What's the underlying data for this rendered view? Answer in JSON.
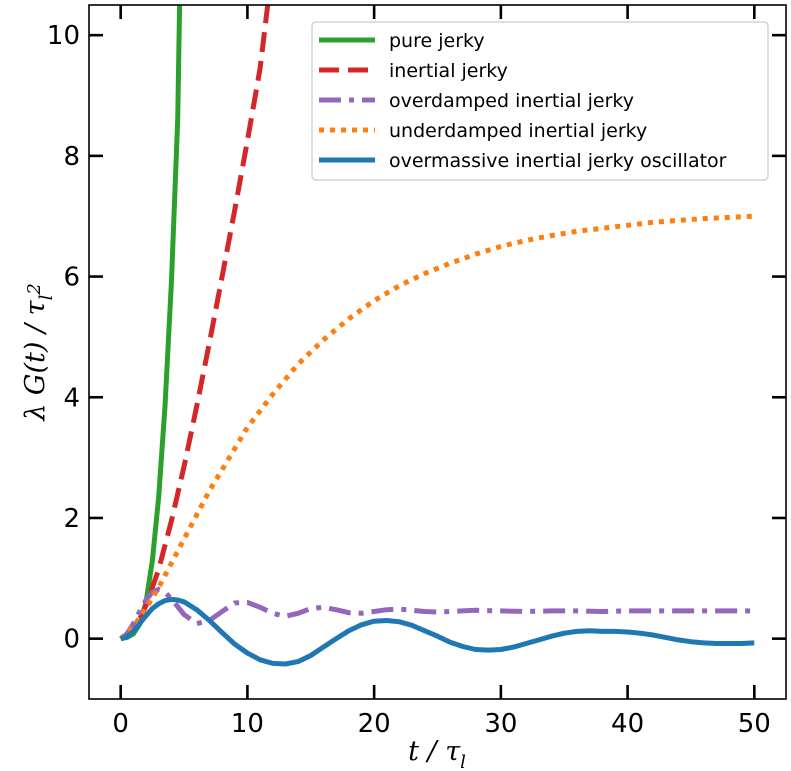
{
  "chart_data": {
    "type": "line",
    "xlabel": "t / τ_l",
    "ylabel": "λ G(t) / τ_l²",
    "xlim": [
      -2.5,
      52.5
    ],
    "ylim": [
      -1.0,
      10.5
    ],
    "xticks": [
      0,
      10,
      20,
      30,
      40,
      50
    ],
    "yticks": [
      0,
      2,
      4,
      6,
      8,
      10
    ],
    "legend_position": "top-right",
    "series": [
      {
        "name": "pure jerky",
        "color": "#2ca02c",
        "style": "solid",
        "x": [
          0,
          0.5,
          1,
          1.5,
          2,
          2.5,
          3,
          3.5,
          4,
          4.5,
          4.65
        ],
        "y": [
          0,
          0.02,
          0.08,
          0.24,
          0.6,
          1.3,
          2.35,
          3.85,
          5.9,
          8.6,
          10.5
        ]
      },
      {
        "name": "inertial jerky",
        "color": "#d62728",
        "style": "dashed",
        "x": [
          0,
          0.5,
          1,
          1.5,
          2,
          3,
          4,
          5,
          6,
          7,
          8,
          9,
          10,
          11,
          11.6
        ],
        "y": [
          0,
          0.05,
          0.16,
          0.33,
          0.55,
          1.15,
          1.95,
          2.85,
          3.85,
          4.9,
          6.0,
          7.1,
          8.25,
          9.45,
          10.5
        ]
      },
      {
        "name": "overdamped inertial jerky",
        "color": "#9467bd",
        "style": "dashdot",
        "x": [
          0,
          0.5,
          1,
          1.5,
          2,
          2.5,
          3,
          3.5,
          4,
          5,
          6,
          7,
          8,
          9,
          10,
          11,
          12,
          13,
          14,
          15,
          16,
          17,
          18,
          19,
          20,
          21,
          22,
          23,
          24,
          25,
          26,
          28,
          30,
          32,
          34,
          36,
          38,
          40,
          42,
          44,
          46,
          48,
          50
        ],
        "y": [
          0,
          0.08,
          0.25,
          0.45,
          0.64,
          0.77,
          0.82,
          0.77,
          0.66,
          0.4,
          0.25,
          0.3,
          0.45,
          0.59,
          0.6,
          0.52,
          0.42,
          0.37,
          0.42,
          0.5,
          0.52,
          0.48,
          0.43,
          0.42,
          0.45,
          0.48,
          0.49,
          0.47,
          0.45,
          0.44,
          0.45,
          0.47,
          0.46,
          0.45,
          0.46,
          0.46,
          0.45,
          0.46,
          0.46,
          0.46,
          0.46,
          0.46,
          0.46
        ]
      },
      {
        "name": "underdamped inertial jerky",
        "color": "#ff7f0e",
        "style": "dotted",
        "x": [
          0,
          1,
          2,
          3,
          4,
          5,
          6,
          7,
          8,
          9,
          10,
          12,
          14,
          16,
          18,
          20,
          22,
          24,
          26,
          28,
          30,
          32,
          34,
          36,
          38,
          40,
          42,
          44,
          46,
          48,
          50
        ],
        "y": [
          0,
          0.2,
          0.5,
          0.85,
          1.25,
          1.65,
          2.05,
          2.45,
          2.8,
          3.15,
          3.5,
          4.05,
          4.55,
          4.95,
          5.3,
          5.6,
          5.85,
          6.05,
          6.22,
          6.37,
          6.5,
          6.6,
          6.68,
          6.75,
          6.8,
          6.85,
          6.9,
          6.93,
          6.96,
          6.98,
          7.0
        ]
      },
      {
        "name": "overmassive inertial jerky oscillator",
        "color": "#1f77b4",
        "style": "solid",
        "x": [
          0,
          0.5,
          1,
          1.5,
          2,
          2.5,
          3,
          3.5,
          4,
          4.5,
          5,
          6,
          7,
          8,
          9,
          10,
          11,
          12,
          13,
          14,
          15,
          16,
          17,
          18,
          19,
          20,
          21,
          22,
          23,
          24,
          25,
          26,
          27,
          28,
          29,
          30,
          31,
          32,
          33,
          34,
          35,
          36,
          37,
          38,
          39,
          40,
          41,
          42,
          43,
          44,
          45,
          46,
          47,
          48,
          49,
          50
        ],
        "y": [
          0,
          0.03,
          0.12,
          0.25,
          0.38,
          0.5,
          0.58,
          0.63,
          0.65,
          0.64,
          0.61,
          0.48,
          0.3,
          0.1,
          -0.09,
          -0.24,
          -0.35,
          -0.41,
          -0.42,
          -0.38,
          -0.28,
          -0.14,
          0.0,
          0.13,
          0.23,
          0.29,
          0.3,
          0.28,
          0.22,
          0.13,
          0.04,
          -0.06,
          -0.13,
          -0.18,
          -0.19,
          -0.18,
          -0.14,
          -0.08,
          -0.02,
          0.04,
          0.09,
          0.12,
          0.13,
          0.12,
          0.12,
          0.11,
          0.09,
          0.06,
          0.02,
          -0.02,
          -0.05,
          -0.07,
          -0.08,
          -0.08,
          -0.08,
          -0.07
        ]
      }
    ]
  }
}
